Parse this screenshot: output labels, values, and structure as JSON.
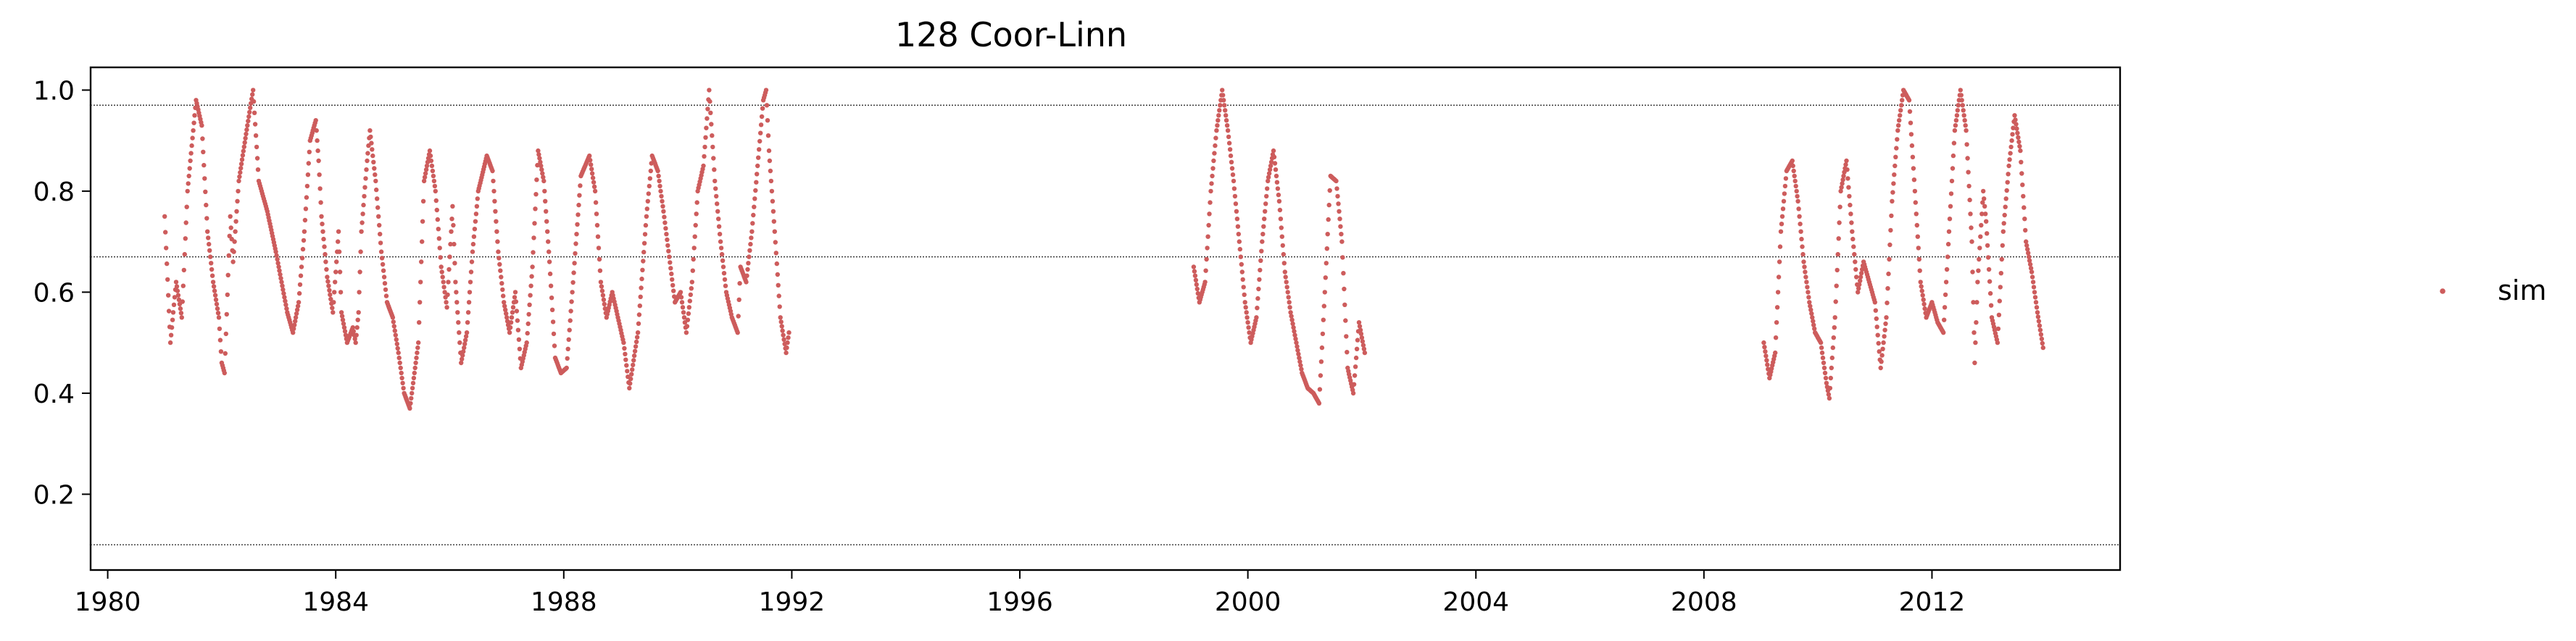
{
  "chart_data": {
    "type": "scatter",
    "title": "128  Coor-Linn",
    "xlabel": "",
    "ylabel": "",
    "xlim": [
      1979.7,
      2015.3
    ],
    "ylim": [
      0.05,
      1.045
    ],
    "x_ticks": [
      1980,
      1984,
      1988,
      1992,
      1996,
      2000,
      2004,
      2008,
      2012
    ],
    "y_ticks": [
      0.2,
      0.4,
      0.6,
      0.8,
      1.0
    ],
    "x_tick_labels": [
      "1980",
      "1984",
      "1988",
      "1992",
      "1996",
      "2000",
      "2004",
      "2008",
      "2012"
    ],
    "y_tick_labels": [
      "0.2",
      "0.4",
      "0.6",
      "0.8",
      "1.0"
    ],
    "reference_lines": [
      0.97,
      0.67,
      0.1
    ],
    "grid": false,
    "legend_position": "right",
    "colors": {
      "sim": "#cd5c5c",
      "reference_line": "#444444",
      "frame": "#000000"
    },
    "series": [
      {
        "name": "sim",
        "marker": "dot",
        "segments": [
          [
            [
              1981.0,
              0.75
            ],
            [
              1981.1,
              0.5
            ],
            [
              1981.2,
              0.62
            ],
            [
              1981.3,
              0.55
            ],
            [
              1981.4,
              0.8
            ],
            [
              1981.55,
              0.98
            ],
            [
              1981.65,
              0.93
            ],
            [
              1981.75,
              0.72
            ],
            [
              1981.85,
              0.62
            ],
            [
              1981.95,
              0.55
            ],
            [
              1982.0,
              0.46
            ],
            [
              1982.05,
              0.44
            ],
            [
              1982.15,
              0.75
            ],
            [
              1982.2,
              0.66
            ],
            [
              1982.3,
              0.82
            ],
            [
              1982.45,
              0.93
            ],
            [
              1982.55,
              1.0
            ],
            [
              1982.65,
              0.82
            ],
            [
              1982.8,
              0.76
            ],
            [
              1982.95,
              0.68
            ],
            [
              1983.05,
              0.62
            ],
            [
              1983.15,
              0.56
            ],
            [
              1983.25,
              0.52
            ],
            [
              1983.35,
              0.58
            ],
            [
              1983.45,
              0.72
            ],
            [
              1983.55,
              0.9
            ],
            [
              1983.65,
              0.94
            ],
            [
              1983.7,
              0.86
            ],
            [
              1983.75,
              0.75
            ],
            [
              1983.85,
              0.63
            ],
            [
              1983.95,
              0.56
            ],
            [
              1984.05,
              0.72
            ],
            [
              1984.1,
              0.56
            ],
            [
              1984.2,
              0.5
            ],
            [
              1984.3,
              0.53
            ],
            [
              1984.35,
              0.5
            ],
            [
              1984.4,
              0.56
            ],
            [
              1984.45,
              0.72
            ],
            [
              1984.55,
              0.86
            ],
            [
              1984.6,
              0.92
            ],
            [
              1984.7,
              0.82
            ],
            [
              1984.8,
              0.68
            ],
            [
              1984.9,
              0.58
            ],
            [
              1985.0,
              0.55
            ],
            [
              1985.1,
              0.48
            ],
            [
              1985.2,
              0.4
            ],
            [
              1985.3,
              0.37
            ],
            [
              1985.45,
              0.5
            ],
            [
              1985.55,
              0.82
            ],
            [
              1985.65,
              0.88
            ],
            [
              1985.75,
              0.8
            ],
            [
              1985.85,
              0.65
            ],
            [
              1985.95,
              0.57
            ],
            [
              1986.05,
              0.77
            ],
            [
              1986.1,
              0.62
            ],
            [
              1986.2,
              0.46
            ],
            [
              1986.3,
              0.52
            ],
            [
              1986.4,
              0.68
            ],
            [
              1986.5,
              0.8
            ],
            [
              1986.65,
              0.87
            ],
            [
              1986.75,
              0.84
            ],
            [
              1986.85,
              0.68
            ],
            [
              1986.95,
              0.58
            ],
            [
              1987.05,
              0.52
            ],
            [
              1987.15,
              0.6
            ],
            [
              1987.25,
              0.45
            ],
            [
              1987.35,
              0.5
            ],
            [
              1987.45,
              0.65
            ],
            [
              1987.55,
              0.88
            ],
            [
              1987.65,
              0.82
            ],
            [
              1987.75,
              0.66
            ],
            [
              1987.85,
              0.47
            ],
            [
              1987.95,
              0.44
            ],
            [
              1988.05,
              0.45
            ],
            [
              1988.15,
              0.6
            ],
            [
              1988.3,
              0.83
            ],
            [
              1988.45,
              0.87
            ],
            [
              1988.55,
              0.8
            ],
            [
              1988.65,
              0.62
            ],
            [
              1988.75,
              0.55
            ],
            [
              1988.85,
              0.6
            ],
            [
              1988.95,
              0.55
            ],
            [
              1989.05,
              0.5
            ],
            [
              1989.15,
              0.41
            ],
            [
              1989.3,
              0.52
            ],
            [
              1989.45,
              0.75
            ],
            [
              1989.55,
              0.87
            ],
            [
              1989.65,
              0.84
            ],
            [
              1989.75,
              0.76
            ],
            [
              1989.85,
              0.67
            ],
            [
              1989.95,
              0.58
            ],
            [
              1990.05,
              0.6
            ],
            [
              1990.15,
              0.52
            ],
            [
              1990.25,
              0.62
            ],
            [
              1990.35,
              0.8
            ],
            [
              1990.45,
              0.85
            ],
            [
              1990.55,
              1.0
            ],
            [
              1990.65,
              0.82
            ],
            [
              1990.75,
              0.7
            ],
            [
              1990.85,
              0.6
            ],
            [
              1990.95,
              0.55
            ],
            [
              1991.05,
              0.52
            ],
            [
              1991.1,
              0.65
            ],
            [
              1991.2,
              0.62
            ],
            [
              1991.3,
              0.72
            ],
            [
              1991.4,
              0.85
            ],
            [
              1991.5,
              0.98
            ],
            [
              1991.55,
              1.0
            ],
            [
              1991.6,
              0.88
            ],
            [
              1991.7,
              0.72
            ],
            [
              1991.8,
              0.55
            ],
            [
              1991.9,
              0.48
            ],
            [
              1991.95,
              0.52
            ]
          ],
          [
            [
              1999.05,
              0.65
            ],
            [
              1999.15,
              0.58
            ],
            [
              1999.25,
              0.62
            ],
            [
              1999.35,
              0.8
            ],
            [
              1999.45,
              0.92
            ],
            [
              1999.55,
              1.0
            ],
            [
              1999.65,
              0.92
            ],
            [
              1999.75,
              0.82
            ],
            [
              1999.85,
              0.7
            ],
            [
              1999.95,
              0.58
            ],
            [
              2000.05,
              0.5
            ],
            [
              2000.15,
              0.55
            ],
            [
              2000.25,
              0.7
            ],
            [
              2000.35,
              0.82
            ],
            [
              2000.45,
              0.88
            ],
            [
              2000.55,
              0.78
            ],
            [
              2000.65,
              0.64
            ],
            [
              2000.75,
              0.56
            ],
            [
              2000.85,
              0.5
            ],
            [
              2000.95,
              0.44
            ],
            [
              2001.05,
              0.41
            ],
            [
              2001.15,
              0.4
            ],
            [
              2001.25,
              0.38
            ],
            [
              2001.35,
              0.6
            ],
            [
              2001.45,
              0.83
            ],
            [
              2001.55,
              0.82
            ],
            [
              2001.65,
              0.7
            ],
            [
              2001.75,
              0.45
            ],
            [
              2001.85,
              0.4
            ],
            [
              2001.95,
              0.54
            ],
            [
              2002.05,
              0.48
            ]
          ],
          [
            [
              2009.05,
              0.5
            ],
            [
              2009.15,
              0.43
            ],
            [
              2009.25,
              0.48
            ],
            [
              2009.35,
              0.72
            ],
            [
              2009.45,
              0.84
            ],
            [
              2009.55,
              0.86
            ],
            [
              2009.65,
              0.78
            ],
            [
              2009.75,
              0.66
            ],
            [
              2009.85,
              0.58
            ],
            [
              2009.95,
              0.52
            ],
            [
              2010.05,
              0.5
            ],
            [
              2010.15,
              0.42
            ],
            [
              2010.2,
              0.39
            ],
            [
              2010.3,
              0.55
            ],
            [
              2010.4,
              0.8
            ],
            [
              2010.5,
              0.86
            ],
            [
              2010.6,
              0.72
            ],
            [
              2010.7,
              0.6
            ],
            [
              2010.8,
              0.66
            ],
            [
              2010.9,
              0.62
            ],
            [
              2011.0,
              0.58
            ],
            [
              2011.1,
              0.45
            ],
            [
              2011.2,
              0.55
            ],
            [
              2011.3,
              0.78
            ],
            [
              2011.4,
              0.92
            ],
            [
              2011.5,
              1.0
            ],
            [
              2011.6,
              0.98
            ],
            [
              2011.7,
              0.8
            ],
            [
              2011.8,
              0.62
            ],
            [
              2011.9,
              0.55
            ],
            [
              2012.0,
              0.58
            ],
            [
              2012.1,
              0.54
            ],
            [
              2012.2,
              0.52
            ],
            [
              2012.3,
              0.72
            ],
            [
              2012.4,
              0.92
            ],
            [
              2012.5,
              1.0
            ],
            [
              2012.6,
              0.92
            ],
            [
              2012.7,
              0.7
            ],
            [
              2012.75,
              0.46
            ],
            [
              2012.8,
              0.62
            ],
            [
              2012.9,
              0.8
            ],
            [
              2012.95,
              0.74
            ],
            [
              2013.05,
              0.55
            ],
            [
              2013.15,
              0.5
            ],
            [
              2013.25,
              0.72
            ],
            [
              2013.35,
              0.85
            ],
            [
              2013.45,
              0.95
            ],
            [
              2013.55,
              0.88
            ],
            [
              2013.65,
              0.7
            ],
            [
              2013.75,
              0.64
            ],
            [
              2013.85,
              0.56
            ],
            [
              2013.95,
              0.49
            ]
          ]
        ]
      }
    ]
  }
}
